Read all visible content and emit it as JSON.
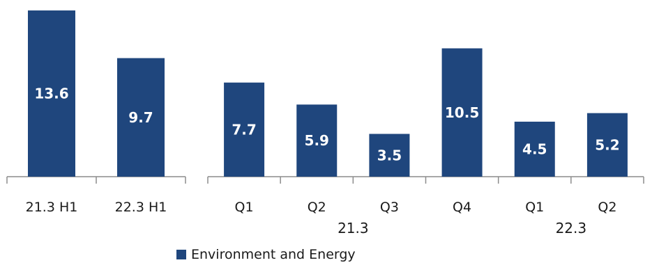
{
  "chart_data": [
    {
      "type": "bar",
      "categories": [
        "21.3 H1",
        "22.3 H1"
      ],
      "series": [
        {
          "name": "Environment and Energy",
          "values": [
            13.6,
            9.7
          ]
        }
      ],
      "ylim": [
        0,
        14
      ]
    },
    {
      "type": "bar",
      "categories": [
        "Q1",
        "Q2",
        "Q3",
        "Q4",
        "Q1",
        "Q2"
      ],
      "groups": [
        {
          "label": "21.3",
          "span": [
            0,
            3
          ]
        },
        {
          "label": "22.3",
          "span": [
            4,
            5
          ]
        }
      ],
      "series": [
        {
          "name": "Environment and Energy",
          "values": [
            7.7,
            5.9,
            3.5,
            10.5,
            4.5,
            5.2
          ]
        }
      ],
      "ylim": [
        0,
        14
      ]
    }
  ],
  "legend": {
    "label": "Environment and Energy"
  },
  "colors": {
    "bar": "#1f467d",
    "axis": "#8c8c8c"
  }
}
